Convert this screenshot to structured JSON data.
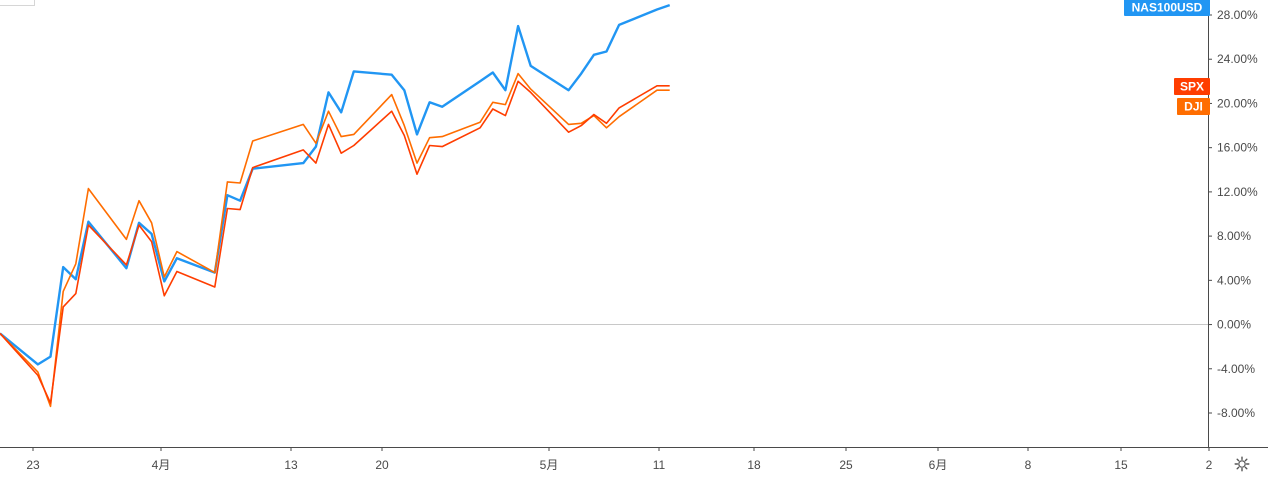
{
  "chart_data": {
    "type": "line",
    "y_unit": "%",
    "ylim": [
      -11,
      29.5
    ],
    "yticks": [
      "28.00%",
      "24.00%",
      "20.00%",
      "16.00%",
      "12.00%",
      "8.00%",
      "4.00%",
      "0.00%",
      "-4.00%",
      "-8.00%"
    ],
    "ytick_values": [
      28,
      24,
      20,
      16,
      12,
      8,
      4,
      0,
      -4,
      -8
    ],
    "xtick_labels": [
      "23",
      "4月",
      "13",
      "20",
      "5月",
      "11",
      "18",
      "25",
      "6月",
      "8",
      "15",
      "2"
    ],
    "x_start": "2020-03-20",
    "x_end": "2020-06-24",
    "x_points": [
      "2020-03-20",
      "2020-03-23",
      "2020-03-24",
      "2020-03-25",
      "2020-03-26",
      "2020-03-27",
      "2020-03-30",
      "2020-03-31",
      "2020-04-01",
      "2020-04-02",
      "2020-04-03",
      "2020-04-06",
      "2020-04-07",
      "2020-04-08",
      "2020-04-09",
      "2020-04-13",
      "2020-04-14",
      "2020-04-15",
      "2020-04-16",
      "2020-04-17",
      "2020-04-20",
      "2020-04-21",
      "2020-04-22",
      "2020-04-23",
      "2020-04-24",
      "2020-04-27",
      "2020-04-28",
      "2020-04-29",
      "2020-04-30",
      "2020-05-01",
      "2020-05-04",
      "2020-05-05",
      "2020-05-06",
      "2020-05-07",
      "2020-05-08",
      "2020-05-11",
      "2020-05-12"
    ],
    "grid": false,
    "zero_line": true,
    "series": [
      {
        "name": "NAS100USD",
        "color": "#2196f3",
        "last": 28.9,
        "values": [
          -0.8,
          -3.6,
          -2.9,
          5.2,
          4.1,
          9.3,
          5.1,
          9.2,
          8.2,
          3.9,
          6.0,
          4.7,
          11.7,
          11.2,
          14.1,
          14.6,
          16.1,
          21.0,
          19.2,
          22.9,
          22.6,
          21.2,
          17.2,
          20.1,
          19.7,
          22.0,
          22.8,
          21.2,
          27.0,
          23.4,
          21.2,
          22.7,
          24.4,
          24.7,
          27.1,
          28.5,
          28.9
        ]
      },
      {
        "name": "SPX",
        "color": "#ff3d00",
        "last": 21.6,
        "values": [
          -0.8,
          -4.6,
          -7.1,
          1.6,
          2.8,
          9.0,
          5.4,
          9.0,
          7.5,
          2.6,
          4.8,
          3.4,
          10.5,
          10.4,
          14.2,
          15.8,
          14.6,
          18.1,
          15.5,
          16.2,
          19.3,
          17.1,
          13.6,
          16.2,
          16.1,
          17.8,
          19.5,
          18.9,
          22.0,
          21.0,
          17.4,
          18.0,
          19.0,
          18.2,
          19.6,
          21.6,
          21.6
        ]
      },
      {
        "name": "DJI",
        "color": "#ff6d00",
        "last": 21.2,
        "values": [
          -0.8,
          -4.3,
          -7.4,
          3.0,
          5.5,
          12.3,
          7.7,
          11.2,
          9.2,
          4.3,
          6.6,
          4.7,
          12.9,
          12.8,
          16.6,
          18.1,
          16.4,
          19.3,
          17.0,
          17.2,
          20.8,
          18.0,
          14.6,
          16.9,
          17.0,
          18.3,
          20.1,
          19.9,
          22.7,
          21.3,
          18.1,
          18.2,
          18.9,
          17.8,
          18.8,
          21.2,
          21.2
        ]
      }
    ]
  }
}
